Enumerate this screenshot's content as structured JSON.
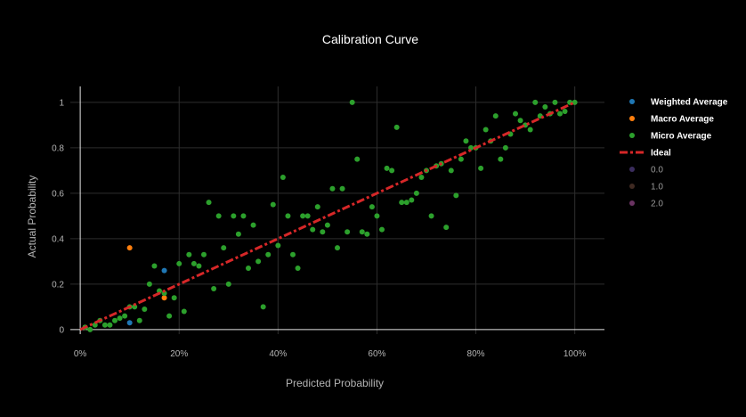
{
  "chart_data": {
    "type": "scatter",
    "title": "Calibration Curve",
    "xlabel": "Predicted Probability",
    "ylabel": "Actual Probability",
    "xlim": [
      -0.02,
      1.06
    ],
    "ylim": [
      -0.02,
      1.07
    ],
    "x_ticks": [
      {
        "value": 0,
        "label": "0%"
      },
      {
        "value": 0.2,
        "label": "20%"
      },
      {
        "value": 0.4,
        "label": "40%"
      },
      {
        "value": 0.6,
        "label": "60%"
      },
      {
        "value": 0.8,
        "label": "80%"
      },
      {
        "value": 1.0,
        "label": "100%"
      }
    ],
    "y_ticks": [
      {
        "value": 0,
        "label": "0"
      },
      {
        "value": 0.2,
        "label": "0.2"
      },
      {
        "value": 0.4,
        "label": "0.4"
      },
      {
        "value": 0.6,
        "label": "0.6"
      },
      {
        "value": 0.8,
        "label": "0.8"
      },
      {
        "value": 1,
        "label": "1"
      }
    ],
    "grid": true,
    "legend_position": "right",
    "series": [
      {
        "name": "Weighted Average",
        "color": "#1f77b4",
        "mode": "markers",
        "x": [
          0.01,
          0.1,
          0.17
        ],
        "y": [
          0.01,
          0.03,
          0.26
        ]
      },
      {
        "name": "Macro Average",
        "color": "#ff7f0e",
        "mode": "markers",
        "x": [
          0.01,
          0.1,
          0.17
        ],
        "y": [
          0.01,
          0.36,
          0.14
        ]
      },
      {
        "name": "Micro Average",
        "color": "#2ca02c",
        "mode": "markers",
        "x": [
          0.01,
          0.02,
          0.03,
          0.04,
          0.05,
          0.06,
          0.07,
          0.08,
          0.09,
          0.1,
          0.11,
          0.12,
          0.13,
          0.14,
          0.15,
          0.16,
          0.17,
          0.18,
          0.19,
          0.2,
          0.21,
          0.22,
          0.23,
          0.24,
          0.25,
          0.26,
          0.27,
          0.28,
          0.29,
          0.3,
          0.31,
          0.32,
          0.33,
          0.34,
          0.35,
          0.36,
          0.37,
          0.38,
          0.39,
          0.4,
          0.41,
          0.42,
          0.43,
          0.44,
          0.45,
          0.46,
          0.47,
          0.48,
          0.49,
          0.5,
          0.51,
          0.52,
          0.53,
          0.54,
          0.55,
          0.56,
          0.57,
          0.58,
          0.59,
          0.6,
          0.61,
          0.62,
          0.63,
          0.64,
          0.65,
          0.66,
          0.67,
          0.68,
          0.69,
          0.7,
          0.71,
          0.72,
          0.73,
          0.74,
          0.75,
          0.76,
          0.77,
          0.78,
          0.79,
          0.8,
          0.81,
          0.82,
          0.83,
          0.84,
          0.85,
          0.86,
          0.87,
          0.88,
          0.89,
          0.9,
          0.91,
          0.92,
          0.93,
          0.94,
          0.95,
          0.96,
          0.97,
          0.98,
          0.99,
          1.0
        ],
        "y": [
          0.01,
          0.0,
          0.02,
          0.04,
          0.02,
          0.02,
          0.04,
          0.05,
          0.06,
          0.1,
          0.1,
          0.04,
          0.09,
          0.2,
          0.28,
          0.17,
          0.16,
          0.06,
          0.14,
          0.29,
          0.08,
          0.33,
          0.29,
          0.28,
          0.33,
          0.56,
          0.18,
          0.5,
          0.36,
          0.2,
          0.5,
          0.42,
          0.5,
          0.27,
          0.46,
          0.3,
          0.1,
          0.33,
          0.55,
          0.37,
          0.67,
          0.5,
          0.33,
          0.27,
          0.5,
          0.5,
          0.44,
          0.54,
          0.43,
          0.46,
          0.62,
          0.36,
          0.62,
          0.43,
          1.0,
          0.75,
          0.43,
          0.42,
          0.54,
          0.5,
          0.44,
          0.71,
          0.7,
          0.89,
          0.56,
          0.56,
          0.57,
          0.6,
          0.67,
          0.7,
          0.5,
          0.72,
          0.73,
          0.45,
          0.7,
          0.59,
          0.75,
          0.83,
          0.8,
          0.8,
          0.71,
          0.88,
          0.83,
          0.94,
          0.75,
          0.8,
          0.86,
          0.95,
          0.92,
          0.9,
          0.88,
          1.0,
          0.94,
          0.98,
          0.95,
          1.0,
          0.95,
          0.96,
          1.0,
          1.0
        ]
      },
      {
        "name": "Ideal",
        "color": "#d62728",
        "mode": "line",
        "dash": "dashdot",
        "x": [
          0,
          1
        ],
        "y": [
          0,
          1
        ]
      },
      {
        "name": "0.0",
        "color": "#3b2d5e",
        "mode": "markers",
        "x": [],
        "y": []
      },
      {
        "name": "1.0",
        "color": "#3f2a22",
        "mode": "markers",
        "x": [],
        "y": []
      },
      {
        "name": "2.0",
        "color": "#6a3362",
        "mode": "markers",
        "x": [],
        "y": []
      }
    ]
  }
}
